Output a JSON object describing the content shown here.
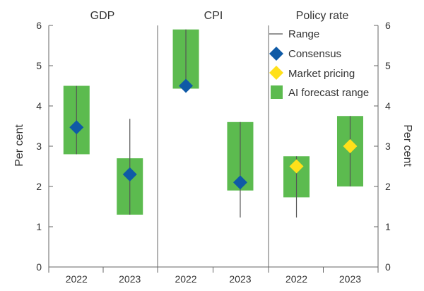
{
  "chart_data": {
    "type": "range",
    "ylim": [
      0,
      6
    ],
    "yticks": [
      0,
      1,
      2,
      3,
      4,
      5,
      6
    ],
    "ylabel_left": "Per cent",
    "ylabel_right": "Per cent",
    "categories": [
      "2022",
      "2023"
    ],
    "panels": [
      {
        "title": "GDP",
        "points": [
          {
            "category": "2022",
            "range_low": 2.8,
            "range_high": 4.5,
            "ai_low": 2.8,
            "ai_high": 4.5,
            "marker_type": "consensus",
            "marker_value": 3.47
          },
          {
            "category": "2023",
            "range_low": 1.3,
            "range_high": 3.68,
            "ai_low": 1.3,
            "ai_high": 2.7,
            "marker_type": "consensus",
            "marker_value": 2.3
          }
        ]
      },
      {
        "title": "CPI",
        "points": [
          {
            "category": "2022",
            "range_low": 4.43,
            "range_high": 5.9,
            "ai_low": 4.43,
            "ai_high": 5.9,
            "marker_type": "consensus",
            "marker_value": 4.5
          },
          {
            "category": "2023",
            "range_low": 1.23,
            "range_high": 3.6,
            "ai_low": 1.9,
            "ai_high": 3.6,
            "marker_type": "consensus",
            "marker_value": 2.1
          }
        ]
      },
      {
        "title": "Policy rate",
        "points": [
          {
            "category": "2022",
            "range_low": 1.23,
            "range_high": 2.75,
            "ai_low": 1.73,
            "ai_high": 2.75,
            "marker_type": "market",
            "marker_value": 2.5
          },
          {
            "category": "2023",
            "range_low": 2.0,
            "range_high": 3.75,
            "ai_low": 2.0,
            "ai_high": 3.75,
            "marker_type": "market",
            "marker_value": 3.0
          }
        ]
      }
    ],
    "legend": {
      "placement": "top-right",
      "items": [
        {
          "key": "range",
          "label": "Range"
        },
        {
          "key": "consensus",
          "label": "Consensus"
        },
        {
          "key": "market",
          "label": "Market pricing"
        },
        {
          "key": "ai",
          "label": "AI forecast range"
        }
      ]
    },
    "colors": {
      "ai_range": "#5cbb4f",
      "consensus": "#0f5aa6",
      "market": "#ffe01a",
      "range_line": "#555555",
      "axis": "#666666",
      "text": "#333333"
    }
  }
}
